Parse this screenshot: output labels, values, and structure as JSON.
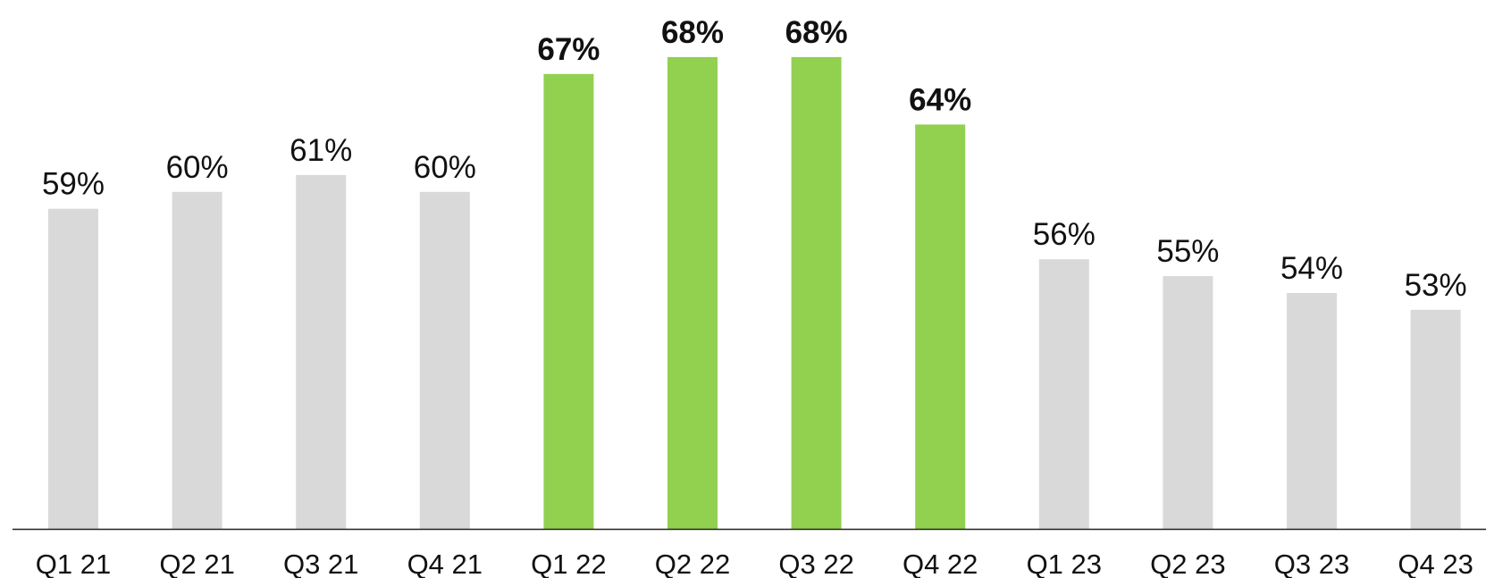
{
  "chart_data": {
    "type": "bar",
    "categories": [
      "Q1 21",
      "Q2 21",
      "Q3 21",
      "Q4 21",
      "Q1 22",
      "Q2 22",
      "Q3 22",
      "Q4 22",
      "Q1 23",
      "Q2 23",
      "Q3 23",
      "Q4 23"
    ],
    "values": [
      59,
      60,
      61,
      60,
      67,
      68,
      68,
      64,
      56,
      55,
      54,
      53
    ],
    "data_labels": [
      "59%",
      "60%",
      "61%",
      "60%",
      "67%",
      "68%",
      "68%",
      "64%",
      "56%",
      "55%",
      "54%",
      "53%"
    ],
    "highlighted": [
      false,
      false,
      false,
      false,
      true,
      true,
      true,
      true,
      false,
      false,
      false,
      false
    ],
    "title": "",
    "xlabel": "",
    "ylabel": "",
    "ylim": [
      40,
      68
    ],
    "grid": false,
    "legend": "none",
    "colors": {
      "default_bar": "#d9d9d9",
      "highlight_bar": "#92d050",
      "axis": "#222222",
      "text": "#111111"
    }
  }
}
